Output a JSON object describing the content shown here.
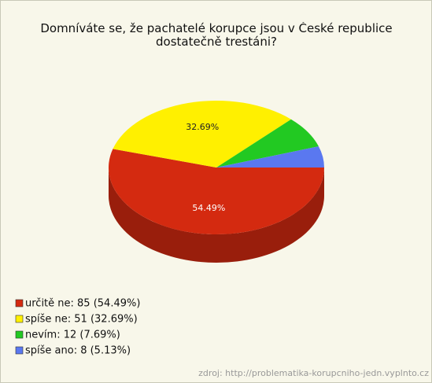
{
  "chart_data": {
    "type": "pie",
    "title": "Domníváte se, že pachatelé korupce jsou v České republice dostatečně trestáni?",
    "categories": [
      "určitě ne: 85 (54.49%)",
      "spíše ne: 51 (32.69%)",
      "nevím: 12 (7.69%)",
      "spíše ano: 8 (5.13%)"
    ],
    "values": [
      54.49,
      32.69,
      7.69,
      5.13
    ],
    "value_labels": [
      "54.49%",
      "32.69%",
      null,
      null
    ],
    "colors": [
      "#d42a10",
      "#fff000",
      "#22c922",
      "#5a78f0"
    ],
    "source": "zdroj: http://problematika-korupcniho-jedn.vyplnto.cz"
  }
}
